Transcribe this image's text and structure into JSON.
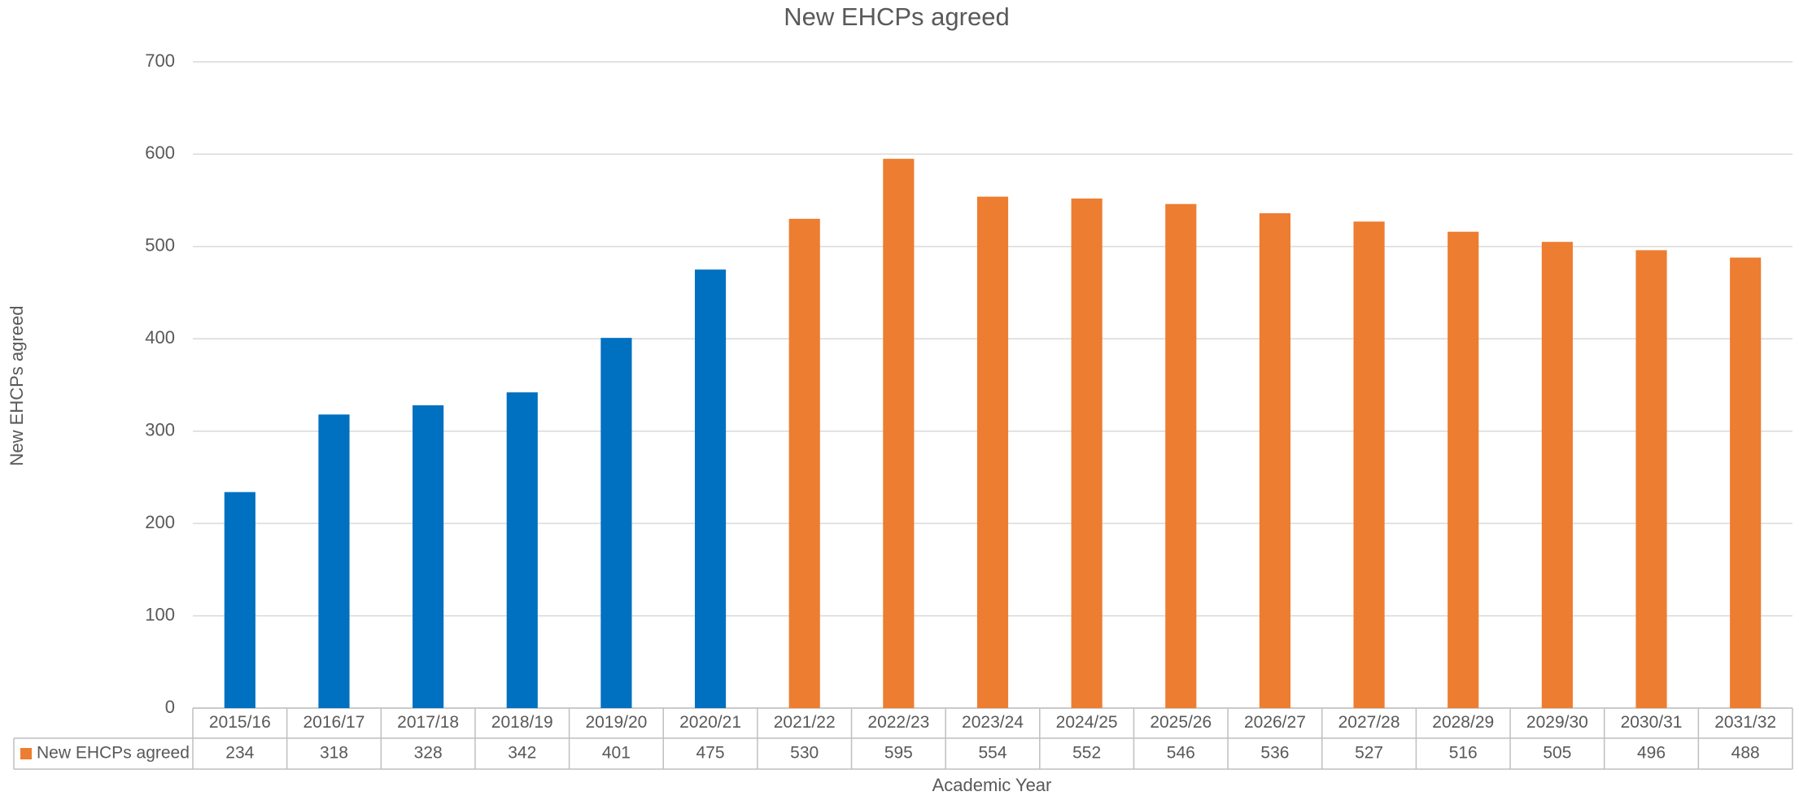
{
  "chart_data": {
    "type": "bar",
    "title": "New EHCPs agreed",
    "x_label": "Academic Year",
    "y_label": "New EHCPs agreed",
    "categories": [
      "2015/16",
      "2016/17",
      "2017/18",
      "2018/19",
      "2019/20",
      "2020/21",
      "2021/22",
      "2022/23",
      "2023/24",
      "2024/25",
      "2025/26",
      "2026/27",
      "2027/28",
      "2028/29",
      "2029/30",
      "2030/31",
      "2031/32"
    ],
    "series": [
      {
        "name": "New EHCPs agreed",
        "color": "#ed7d31",
        "values": [
          234,
          318,
          328,
          342,
          401,
          475,
          530,
          595,
          554,
          552,
          546,
          536,
          527,
          516,
          505,
          496,
          488
        ],
        "colors": [
          "#0070c0",
          "#0070c0",
          "#0070c0",
          "#0070c0",
          "#0070c0",
          "#0070c0",
          "#ed7d31",
          "#ed7d31",
          "#ed7d31",
          "#ed7d31",
          "#ed7d31",
          "#ed7d31",
          "#ed7d31",
          "#ed7d31",
          "#ed7d31",
          "#ed7d31",
          "#ed7d31"
        ]
      }
    ],
    "ylim": [
      0,
      700
    ],
    "yticks": [
      0,
      100,
      200,
      300,
      400,
      500,
      600,
      700
    ],
    "grid": true,
    "data_table": true
  }
}
